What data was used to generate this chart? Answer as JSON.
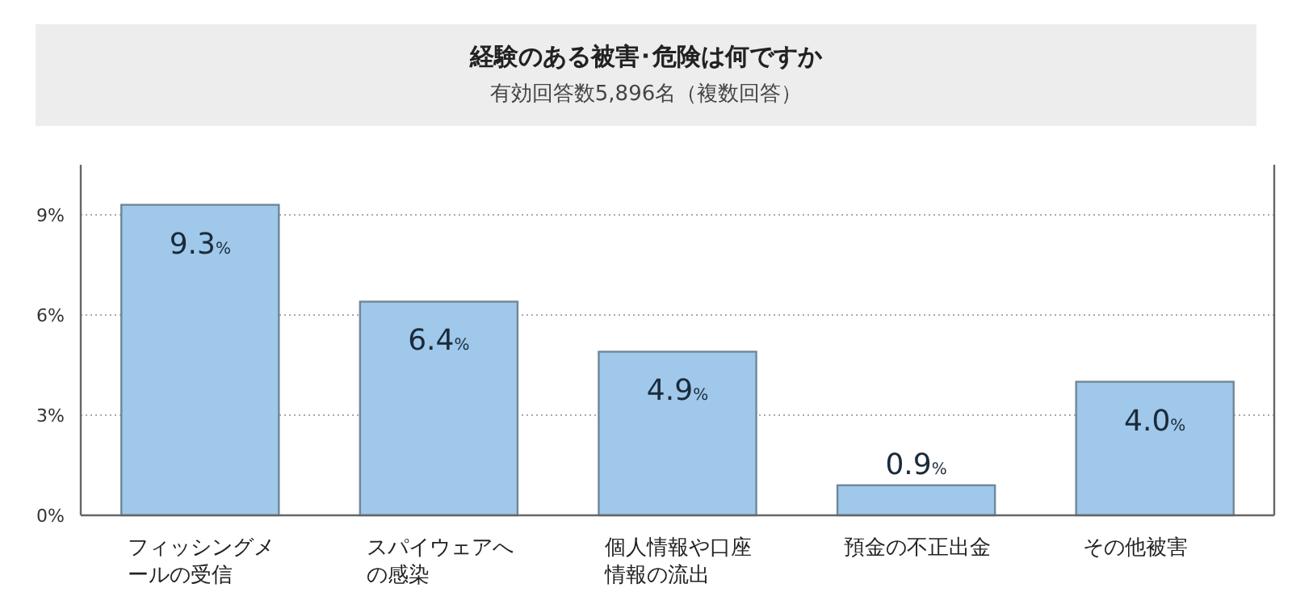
{
  "chart_data": {
    "type": "bar",
    "title": "経験のある被害･危険は何ですか",
    "subtitle": "有効回答数5,896名（複数回答）",
    "categories": [
      "フィッシングメールの受信",
      "スパイウェアへの感染",
      "個人情報や口座情報の流出",
      "預金の不正出金",
      "その他被害"
    ],
    "values": [
      9.3,
      6.4,
      4.9,
      0.9,
      4.0
    ],
    "value_labels": [
      "9.3%",
      "6.4%",
      "4.9%",
      "0.9%",
      "4.0%"
    ],
    "color": "#9fc8ea",
    "ylim": [
      0,
      10.5
    ],
    "yticks": [
      {
        "value": 0,
        "label": "0%"
      },
      {
        "value": 3,
        "label": "3%"
      },
      {
        "value": 6,
        "label": "6%"
      },
      {
        "value": 9,
        "label": "9%"
      }
    ],
    "grid": "y"
  }
}
